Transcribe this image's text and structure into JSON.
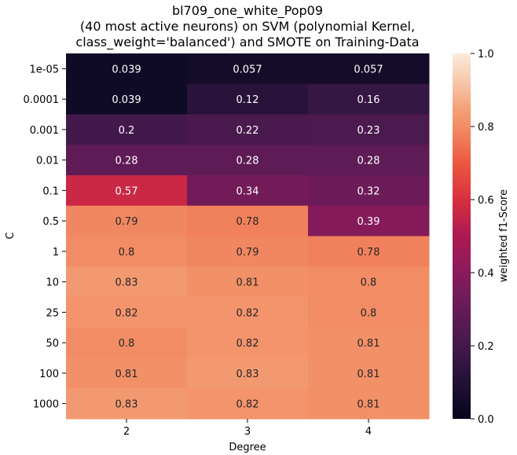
{
  "chart_data": {
    "type": "heatmap",
    "title": [
      "bl709_one_white_Pop09",
      "(40 most active neurons) on SVM (polynomial Kernel,",
      "class_weight='balanced') and SMOTE on Training-Data"
    ],
    "xlabel": "Degree",
    "ylabel": "C",
    "x_categories": [
      "2",
      "3",
      "4"
    ],
    "y_categories": [
      "1e-05",
      "0.0001",
      "0.001",
      "0.01",
      "0.1",
      "0.5",
      "1",
      "10",
      "25",
      "50",
      "100",
      "1000"
    ],
    "values": [
      [
        0.039,
        0.057,
        0.057
      ],
      [
        0.039,
        0.12,
        0.16
      ],
      [
        0.2,
        0.22,
        0.23
      ],
      [
        0.28,
        0.28,
        0.28
      ],
      [
        0.57,
        0.34,
        0.32
      ],
      [
        0.79,
        0.78,
        0.39
      ],
      [
        0.8,
        0.79,
        0.78
      ],
      [
        0.83,
        0.81,
        0.8
      ],
      [
        0.82,
        0.82,
        0.8
      ],
      [
        0.8,
        0.82,
        0.81
      ],
      [
        0.81,
        0.83,
        0.81
      ],
      [
        0.83,
        0.82,
        0.81
      ]
    ],
    "colorbar": {
      "label": "weighted f1-Score",
      "range": [
        0.0,
        1.0
      ],
      "ticks": [
        "0.0",
        "0.2",
        "0.4",
        "0.6",
        "0.8",
        "1.0"
      ],
      "colormap": "rocket"
    }
  }
}
